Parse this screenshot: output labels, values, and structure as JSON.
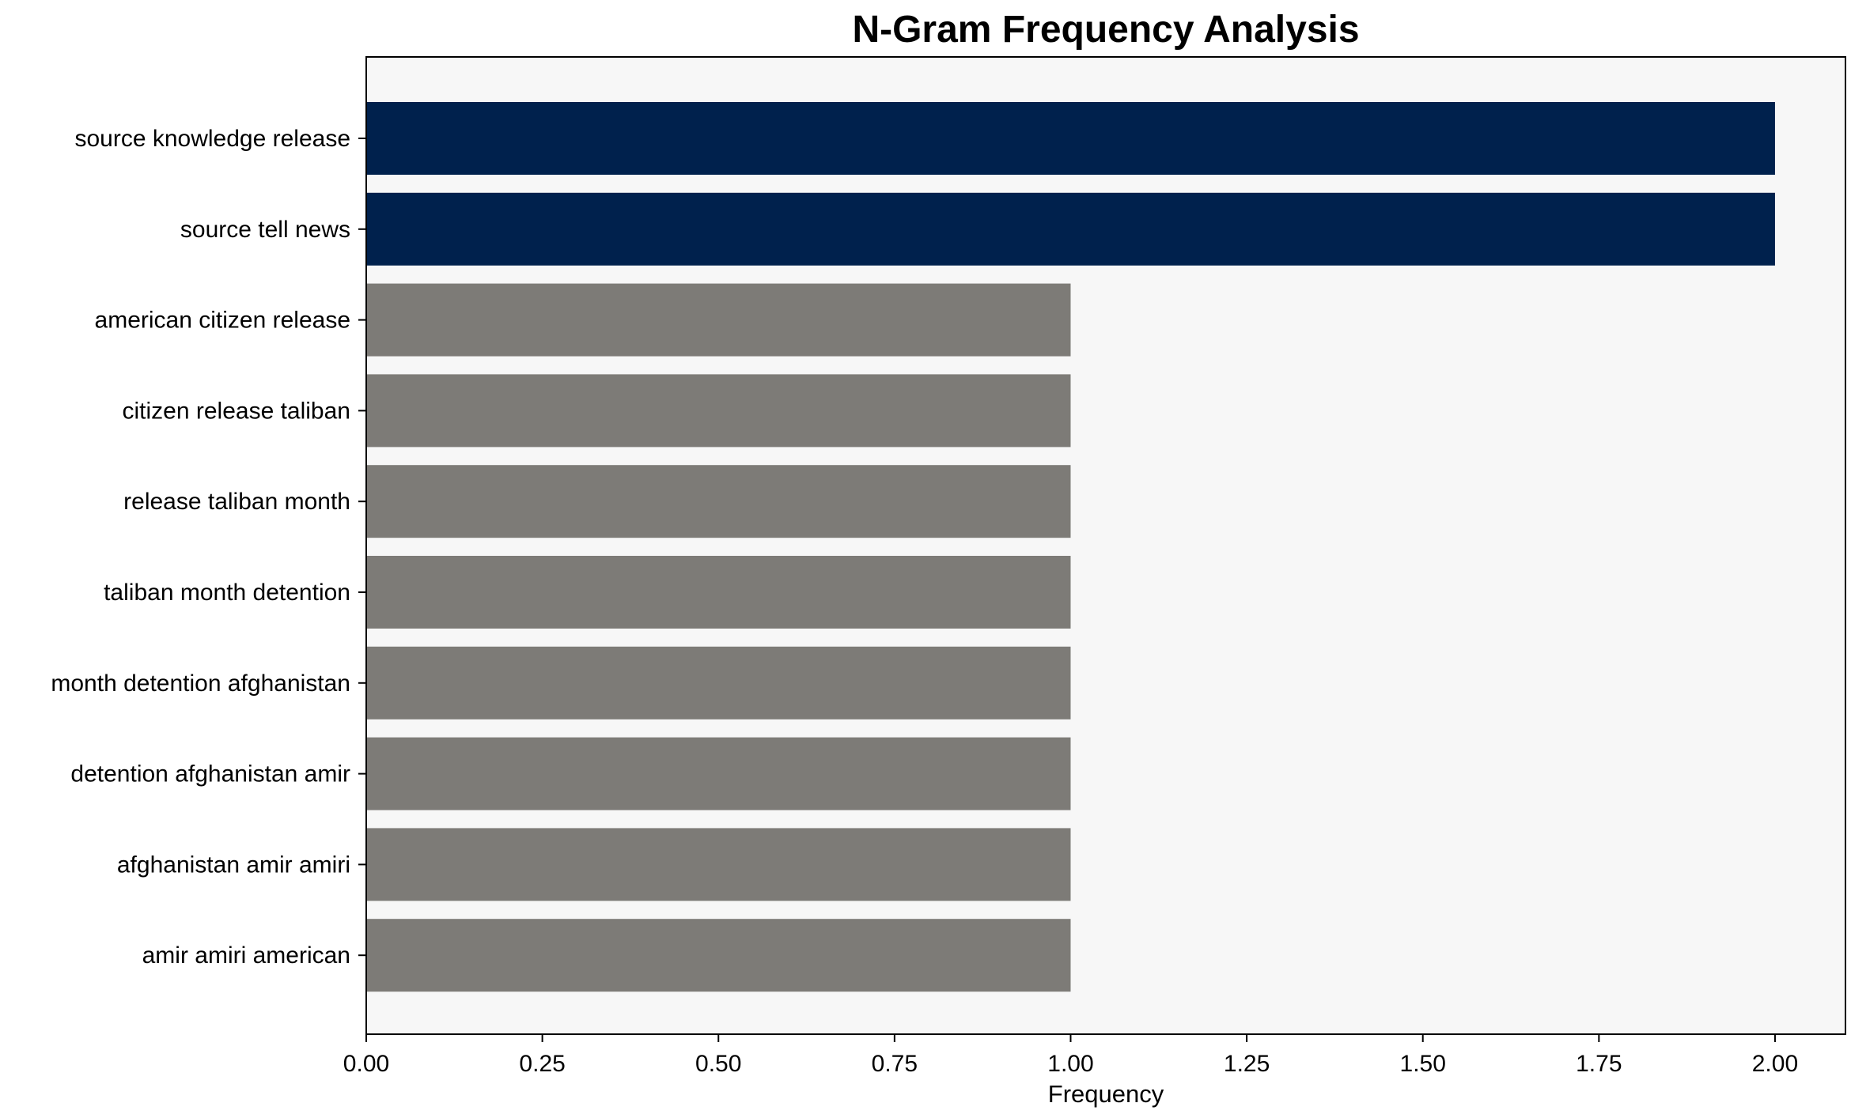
{
  "chart_data": {
    "type": "bar",
    "orientation": "horizontal",
    "title": "N-Gram Frequency Analysis",
    "xlabel": "Frequency",
    "ylabel": "",
    "categories": [
      "source knowledge release",
      "source tell news",
      "american citizen release",
      "citizen release taliban",
      "release taliban month",
      "taliban month detention",
      "month detention afghanistan",
      "detention afghanistan amir",
      "afghanistan amir amiri",
      "amir amiri american"
    ],
    "values": [
      2,
      2,
      1,
      1,
      1,
      1,
      1,
      1,
      1,
      1
    ],
    "bar_colors": [
      "#00214d",
      "#00214d",
      "#7d7b77",
      "#7d7b77",
      "#7d7b77",
      "#7d7b77",
      "#7d7b77",
      "#7d7b77",
      "#7d7b77",
      "#7d7b77"
    ],
    "xlim": [
      0,
      2.1
    ],
    "xticks": [
      "0.00",
      "0.25",
      "0.50",
      "0.75",
      "1.00",
      "1.25",
      "1.50",
      "1.75",
      "2.00"
    ],
    "background": "#f7f7f7",
    "grid": false
  }
}
